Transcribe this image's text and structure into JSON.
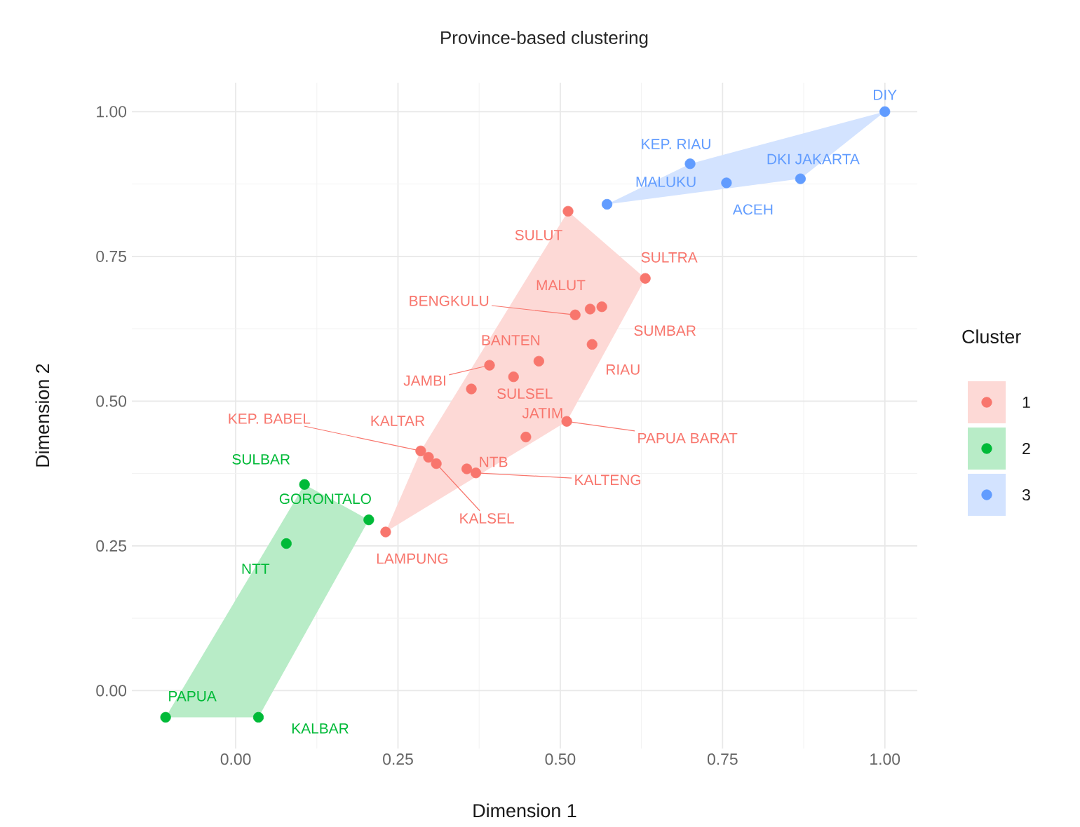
{
  "chart_data": {
    "type": "scatter",
    "title": "Province-based clustering",
    "xlabel": "Dimension 1",
    "ylabel": "Dimension 2",
    "legend_title": "Cluster",
    "series": [
      {
        "name": "1",
        "color": "#f8766d",
        "x": [
          0.512,
          0.631,
          0.523,
          0.546,
          0.564,
          0.549,
          0.467,
          0.428,
          0.391,
          0.363,
          0.447,
          0.51,
          0.285,
          0.297,
          0.309,
          0.356,
          0.37,
          0.231
        ],
        "values": [
          0.828,
          0.712,
          0.649,
          0.659,
          0.663,
          0.598,
          0.569,
          0.542,
          0.562,
          0.521,
          0.438,
          0.465,
          0.414,
          0.403,
          0.392,
          0.383,
          0.376,
          0.274
        ]
      },
      {
        "name": "2",
        "color": "#00ba38",
        "x": [
          0.106,
          0.205,
          0.078,
          -0.108,
          0.035
        ],
        "values": [
          0.356,
          0.295,
          0.254,
          -0.046,
          -0.046
        ]
      },
      {
        "name": "3",
        "color": "#619cff",
        "x": [
          1.0,
          0.7,
          0.87,
          0.756,
          0.572
        ],
        "values": [
          1.0,
          0.91,
          0.884,
          0.877,
          0.84
        ]
      }
    ],
    "annotations": [
      {
        "text": "DIY",
        "x": 1.0,
        "y": 1.0
      },
      {
        "text": "KEP. RIAU",
        "x": 0.7,
        "y": 0.91
      },
      {
        "text": "DKI JAKARTA",
        "x": 0.87,
        "y": 0.884
      },
      {
        "text": "ACEH",
        "x": 0.756,
        "y": 0.877
      },
      {
        "text": "MALUKU",
        "x": 0.572,
        "y": 0.84
      },
      {
        "text": "SULUT",
        "x": 0.512,
        "y": 0.828
      },
      {
        "text": "SULTRA",
        "x": 0.631,
        "y": 0.712
      },
      {
        "text": "BENGKULU",
        "x": 0.523,
        "y": 0.649
      },
      {
        "text": "MALUT",
        "x": 0.546,
        "y": 0.659
      },
      {
        "text": "SUMBAR",
        "x": 0.564,
        "y": 0.663
      },
      {
        "text": "RIAU",
        "x": 0.549,
        "y": 0.598
      },
      {
        "text": "BANTEN",
        "x": 0.467,
        "y": 0.569
      },
      {
        "text": "SULSEL",
        "x": 0.428,
        "y": 0.542
      },
      {
        "text": "JAMBI",
        "x": 0.391,
        "y": 0.562
      },
      {
        "text": "JATIM",
        "x": 0.447,
        "y": 0.438
      },
      {
        "text": "PAPUA BARAT",
        "x": 0.51,
        "y": 0.465
      },
      {
        "text": "KEP. BABEL",
        "x": 0.285,
        "y": 0.414
      },
      {
        "text": "KALTAR",
        "x": 0.297,
        "y": 0.403
      },
      {
        "text": "KALSEL",
        "x": 0.309,
        "y": 0.392
      },
      {
        "text": "NTB",
        "x": 0.356,
        "y": 0.383
      },
      {
        "text": "KALTENG",
        "x": 0.37,
        "y": 0.376
      },
      {
        "text": "LAMPUNG",
        "x": 0.231,
        "y": 0.274
      },
      {
        "text": "SULBAR",
        "x": 0.106,
        "y": 0.356
      },
      {
        "text": "GORONTALO",
        "x": 0.205,
        "y": 0.295
      },
      {
        "text": "NTT",
        "x": 0.078,
        "y": 0.254
      },
      {
        "text": "PAPUA",
        "x": -0.108,
        "y": -0.046
      },
      {
        "text": "KALBAR",
        "x": 0.035,
        "y": -0.046
      }
    ],
    "xlim": [
      -0.16,
      1.05
    ],
    "ylim": [
      -0.1,
      1.05
    ],
    "xticks": [
      {
        "value": 0,
        "label": "0.00"
      },
      {
        "value": 0.25,
        "label": "0.25"
      },
      {
        "value": 0.5,
        "label": "0.50"
      },
      {
        "value": 0.75,
        "label": "0.75"
      },
      {
        "value": 1,
        "label": "1.00"
      }
    ],
    "yticks": [
      {
        "value": 0,
        "label": "0.00"
      },
      {
        "value": 0.25,
        "label": "0.25"
      },
      {
        "value": 0.5,
        "label": "0.50"
      },
      {
        "value": 0.75,
        "label": "0.75"
      },
      {
        "value": 1,
        "label": "1.00"
      }
    ],
    "grid": true,
    "legend": "right",
    "marker": "circle"
  }
}
